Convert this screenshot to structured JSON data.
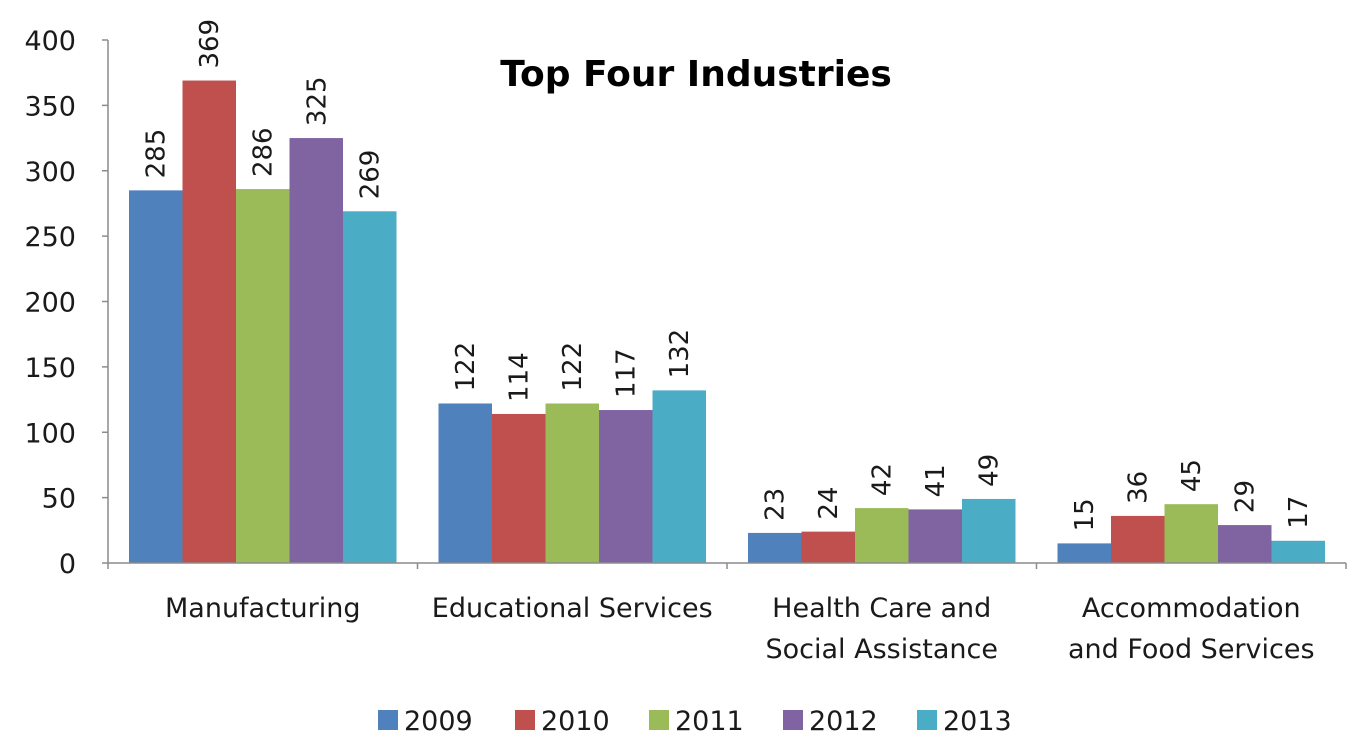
{
  "chart_data": {
    "type": "bar",
    "title": "Top Four Industries",
    "categories": [
      [
        "Manufacturing"
      ],
      [
        "Educational Services"
      ],
      [
        "Health Care and",
        "Social Assistance"
      ],
      [
        "Accommodation",
        "and Food Services"
      ]
    ],
    "series": [
      {
        "name": "2009",
        "color": "#4F81BD",
        "values": [
          285,
          122,
          23,
          15
        ]
      },
      {
        "name": "2010",
        "color": "#C0504D",
        "values": [
          369,
          114,
          24,
          36
        ]
      },
      {
        "name": "2011",
        "color": "#9BBB59",
        "values": [
          286,
          122,
          42,
          45
        ]
      },
      {
        "name": "2012",
        "color": "#8064A2",
        "values": [
          325,
          117,
          41,
          29
        ]
      },
      {
        "name": "2013",
        "color": "#4BACC6",
        "values": [
          269,
          132,
          49,
          17
        ]
      }
    ],
    "ylim": [
      0,
      400
    ],
    "yticks": [
      0,
      50,
      100,
      150,
      200,
      250,
      300,
      350,
      400
    ],
    "data_labels": true,
    "data_label_rotation": "vertical",
    "legend_position": "bottom",
    "grid": false
  }
}
